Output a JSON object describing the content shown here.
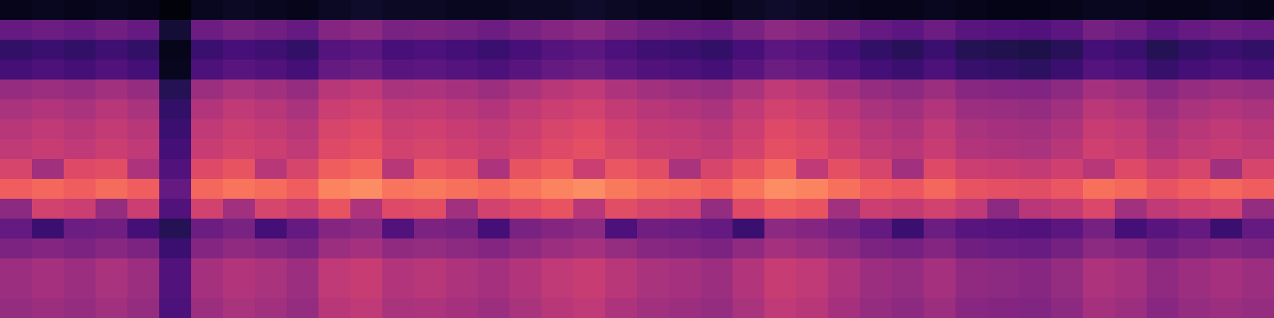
{
  "chart_data": {
    "type": "heatmap",
    "color": "magma",
    "tick_labels": false,
    "zlim": [
      0,
      1
    ],
    "cells": [
      [
        0.05,
        0.06,
        0.05,
        0.06,
        0.05,
        0.02,
        0.06,
        0.07,
        0.06,
        0.05,
        0.07,
        0.08,
        0.07,
        0.07,
        0.06,
        0.06,
        0.07,
        0.07,
        0.08,
        0.07,
        0.06,
        0.06,
        0.05,
        0.07,
        0.08,
        0.07,
        0.06,
        0.05,
        0.05,
        0.06,
        0.05,
        0.04,
        0.04,
        0.05,
        0.06,
        0.06,
        0.05,
        0.05,
        0.06,
        0.05
      ],
      [
        0.3,
        0.32,
        0.3,
        0.33,
        0.3,
        0.1,
        0.32,
        0.35,
        0.33,
        0.3,
        0.38,
        0.4,
        0.35,
        0.36,
        0.34,
        0.32,
        0.35,
        0.38,
        0.4,
        0.36,
        0.33,
        0.32,
        0.3,
        0.35,
        0.4,
        0.38,
        0.34,
        0.3,
        0.28,
        0.32,
        0.27,
        0.26,
        0.25,
        0.28,
        0.34,
        0.32,
        0.27,
        0.3,
        0.32,
        0.3
      ],
      [
        0.18,
        0.2,
        0.18,
        0.21,
        0.18,
        0.05,
        0.2,
        0.23,
        0.21,
        0.18,
        0.26,
        0.28,
        0.23,
        0.24,
        0.22,
        0.2,
        0.23,
        0.26,
        0.28,
        0.24,
        0.21,
        0.2,
        0.18,
        0.23,
        0.28,
        0.26,
        0.22,
        0.18,
        0.16,
        0.2,
        0.15,
        0.14,
        0.13,
        0.16,
        0.22,
        0.2,
        0.15,
        0.18,
        0.2,
        0.18
      ],
      [
        0.22,
        0.24,
        0.22,
        0.25,
        0.22,
        0.06,
        0.24,
        0.27,
        0.25,
        0.22,
        0.3,
        0.32,
        0.27,
        0.28,
        0.26,
        0.24,
        0.27,
        0.3,
        0.32,
        0.28,
        0.25,
        0.24,
        0.22,
        0.27,
        0.32,
        0.3,
        0.26,
        0.22,
        0.2,
        0.24,
        0.19,
        0.18,
        0.17,
        0.2,
        0.26,
        0.24,
        0.19,
        0.22,
        0.24,
        0.22
      ],
      [
        0.42,
        0.44,
        0.42,
        0.45,
        0.42,
        0.15,
        0.44,
        0.47,
        0.45,
        0.42,
        0.5,
        0.52,
        0.47,
        0.48,
        0.46,
        0.44,
        0.47,
        0.5,
        0.52,
        0.48,
        0.45,
        0.44,
        0.42,
        0.47,
        0.52,
        0.5,
        0.46,
        0.42,
        0.4,
        0.44,
        0.39,
        0.38,
        0.37,
        0.4,
        0.46,
        0.44,
        0.39,
        0.42,
        0.44,
        0.42
      ],
      [
        0.47,
        0.49,
        0.47,
        0.5,
        0.47,
        0.18,
        0.49,
        0.52,
        0.5,
        0.47,
        0.55,
        0.57,
        0.52,
        0.53,
        0.51,
        0.49,
        0.52,
        0.55,
        0.57,
        0.53,
        0.5,
        0.49,
        0.47,
        0.52,
        0.57,
        0.55,
        0.51,
        0.47,
        0.45,
        0.49,
        0.44,
        0.43,
        0.42,
        0.45,
        0.51,
        0.49,
        0.44,
        0.47,
        0.49,
        0.47
      ],
      [
        0.5,
        0.52,
        0.5,
        0.53,
        0.5,
        0.2,
        0.52,
        0.55,
        0.53,
        0.5,
        0.58,
        0.6,
        0.55,
        0.56,
        0.54,
        0.52,
        0.55,
        0.58,
        0.6,
        0.56,
        0.53,
        0.52,
        0.5,
        0.55,
        0.6,
        0.58,
        0.54,
        0.5,
        0.48,
        0.52,
        0.47,
        0.46,
        0.45,
        0.48,
        0.54,
        0.52,
        0.47,
        0.5,
        0.52,
        0.5
      ],
      [
        0.52,
        0.54,
        0.52,
        0.55,
        0.52,
        0.22,
        0.54,
        0.57,
        0.55,
        0.52,
        0.6,
        0.62,
        0.57,
        0.58,
        0.56,
        0.54,
        0.57,
        0.6,
        0.62,
        0.58,
        0.55,
        0.54,
        0.52,
        0.57,
        0.62,
        0.6,
        0.56,
        0.52,
        0.5,
        0.54,
        0.49,
        0.48,
        0.47,
        0.5,
        0.56,
        0.54,
        0.49,
        0.52,
        0.54,
        0.52
      ],
      [
        0.58,
        0.45,
        0.6,
        0.61,
        0.48,
        0.25,
        0.6,
        0.63,
        0.5,
        0.58,
        0.66,
        0.68,
        0.5,
        0.64,
        0.62,
        0.48,
        0.63,
        0.66,
        0.55,
        0.64,
        0.61,
        0.47,
        0.58,
        0.63,
        0.68,
        0.52,
        0.62,
        0.58,
        0.45,
        0.6,
        0.55,
        0.54,
        0.53,
        0.56,
        0.5,
        0.6,
        0.55,
        0.58,
        0.45,
        0.58
      ],
      [
        0.66,
        0.68,
        0.66,
        0.69,
        0.66,
        0.3,
        0.68,
        0.71,
        0.69,
        0.66,
        0.74,
        0.76,
        0.71,
        0.72,
        0.7,
        0.68,
        0.71,
        0.74,
        0.76,
        0.72,
        0.69,
        0.68,
        0.66,
        0.71,
        0.76,
        0.74,
        0.7,
        0.66,
        0.64,
        0.68,
        0.63,
        0.62,
        0.61,
        0.64,
        0.7,
        0.68,
        0.63,
        0.66,
        0.68,
        0.66
      ],
      [
        0.4,
        0.57,
        0.55,
        0.42,
        0.55,
        0.25,
        0.57,
        0.45,
        0.58,
        0.55,
        0.63,
        0.48,
        0.6,
        0.61,
        0.45,
        0.57,
        0.6,
        0.63,
        0.5,
        0.61,
        0.58,
        0.57,
        0.42,
        0.6,
        0.65,
        0.63,
        0.45,
        0.55,
        0.53,
        0.57,
        0.52,
        0.4,
        0.5,
        0.53,
        0.59,
        0.45,
        0.52,
        0.55,
        0.57,
        0.42
      ],
      [
        0.3,
        0.2,
        0.32,
        0.33,
        0.22,
        0.15,
        0.32,
        0.35,
        0.22,
        0.3,
        0.38,
        0.4,
        0.25,
        0.36,
        0.34,
        0.22,
        0.35,
        0.38,
        0.4,
        0.24,
        0.33,
        0.32,
        0.3,
        0.2,
        0.4,
        0.38,
        0.34,
        0.3,
        0.2,
        0.32,
        0.27,
        0.26,
        0.25,
        0.28,
        0.34,
        0.22,
        0.27,
        0.3,
        0.2,
        0.3
      ],
      [
        0.36,
        0.38,
        0.36,
        0.39,
        0.36,
        0.2,
        0.38,
        0.41,
        0.39,
        0.36,
        0.44,
        0.46,
        0.41,
        0.42,
        0.4,
        0.38,
        0.41,
        0.44,
        0.46,
        0.42,
        0.39,
        0.38,
        0.36,
        0.41,
        0.46,
        0.44,
        0.4,
        0.36,
        0.34,
        0.38,
        0.33,
        0.32,
        0.31,
        0.34,
        0.4,
        0.38,
        0.33,
        0.36,
        0.38,
        0.36
      ],
      [
        0.44,
        0.46,
        0.44,
        0.47,
        0.44,
        0.25,
        0.46,
        0.49,
        0.47,
        0.44,
        0.52,
        0.54,
        0.49,
        0.5,
        0.48,
        0.46,
        0.49,
        0.52,
        0.54,
        0.5,
        0.47,
        0.46,
        0.44,
        0.49,
        0.54,
        0.52,
        0.48,
        0.44,
        0.42,
        0.46,
        0.41,
        0.4,
        0.39,
        0.42,
        0.48,
        0.46,
        0.41,
        0.44,
        0.46,
        0.44
      ],
      [
        0.44,
        0.46,
        0.44,
        0.47,
        0.44,
        0.25,
        0.46,
        0.49,
        0.47,
        0.44,
        0.52,
        0.54,
        0.49,
        0.5,
        0.48,
        0.46,
        0.49,
        0.52,
        0.54,
        0.5,
        0.47,
        0.46,
        0.44,
        0.49,
        0.54,
        0.52,
        0.48,
        0.44,
        0.42,
        0.46,
        0.41,
        0.4,
        0.39,
        0.42,
        0.48,
        0.46,
        0.41,
        0.44,
        0.46,
        0.44
      ],
      [
        0.42,
        0.44,
        0.42,
        0.45,
        0.42,
        0.24,
        0.44,
        0.47,
        0.45,
        0.42,
        0.5,
        0.52,
        0.47,
        0.48,
        0.46,
        0.44,
        0.47,
        0.5,
        0.52,
        0.48,
        0.45,
        0.44,
        0.42,
        0.47,
        0.52,
        0.5,
        0.46,
        0.42,
        0.4,
        0.44,
        0.39,
        0.38,
        0.37,
        0.4,
        0.46,
        0.44,
        0.39,
        0.42,
        0.44,
        0.42
      ]
    ]
  }
}
